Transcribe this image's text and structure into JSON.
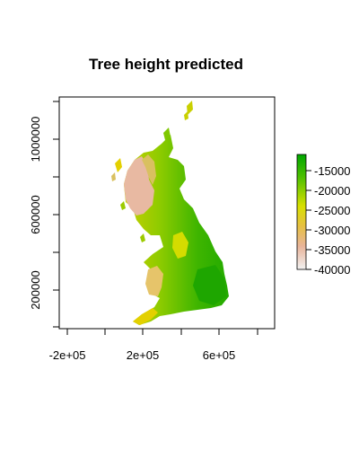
{
  "chart_data": {
    "type": "heatmap",
    "title": "Tree height predicted",
    "xlabel": "",
    "ylabel": "",
    "x_ticks": [
      "-2e+05",
      "2e+05",
      "6e+05"
    ],
    "y_ticks": [
      "200000",
      "600000",
      "1000000"
    ],
    "legend": {
      "placement": "right",
      "labels": [
        "-15000",
        "-20000",
        "-25000",
        "-30000",
        "-35000",
        "-40000"
      ],
      "colors_high_to_low": [
        "#00A600",
        "#63C600",
        "#E6E600",
        "#E9BD3A",
        "#ECB176",
        "#F2F2F2"
      ]
    }
  }
}
